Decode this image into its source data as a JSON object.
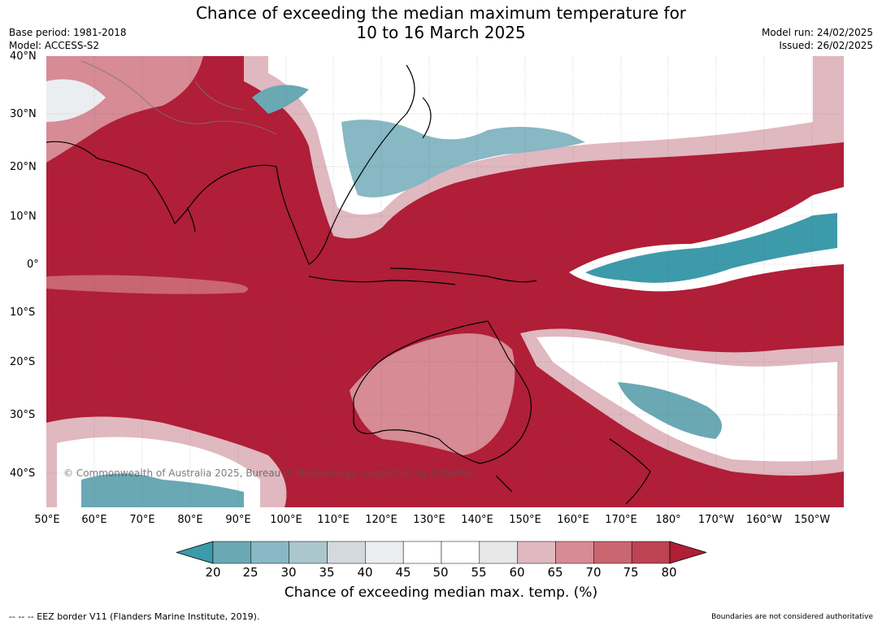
{
  "header": {
    "title_line1": "Chance of exceeding the median maximum temperature for",
    "title_line2": "10 to 16 March 2025",
    "base_period": "Base period: 1981-2018",
    "model": "Model: ACCESS-S2",
    "model_run": "Model run: 24/02/2025",
    "issued": "Issued: 26/02/2025"
  },
  "map": {
    "lat_labels": [
      "40°N",
      "30°N",
      "20°N",
      "10°N",
      "0°",
      "10°S",
      "20°S",
      "30°S",
      "40°S"
    ],
    "lon_labels": [
      "50°E",
      "60°E",
      "70°E",
      "80°E",
      "90°E",
      "100°E",
      "110°E",
      "120°E",
      "130°E",
      "140°E",
      "150°E",
      "160°E",
      "170°E",
      "180°",
      "170°W",
      "160°W",
      "150°W"
    ],
    "background_color": "#b01e38",
    "copyright": "© Commonwealth of Australia 2025, Bureau of Meteorology, supported by COSPPac"
  },
  "legend": {
    "title": "Chance of exceeding median max. temp. (%)",
    "ticks": [
      "20",
      "25",
      "30",
      "35",
      "40",
      "45",
      "50",
      "55",
      "60",
      "65",
      "70",
      "75",
      "80"
    ],
    "colors": [
      "#3d9aaa",
      "#6aa8b4",
      "#87b8c4",
      "#acc6cd",
      "#d3d9dc",
      "#eaeef0",
      "#ffffff",
      "#ffffff",
      "#e8e8e8",
      "#e0b8bf",
      "#d68b95",
      "#c96670",
      "#bd4352",
      "#b01e38"
    ]
  },
  "footer": {
    "eez_note": "--  --  -- EEZ border V11 (Flanders Marine Institute, 2019).",
    "disclaimer": "Boundaries are not considered authoritative"
  }
}
